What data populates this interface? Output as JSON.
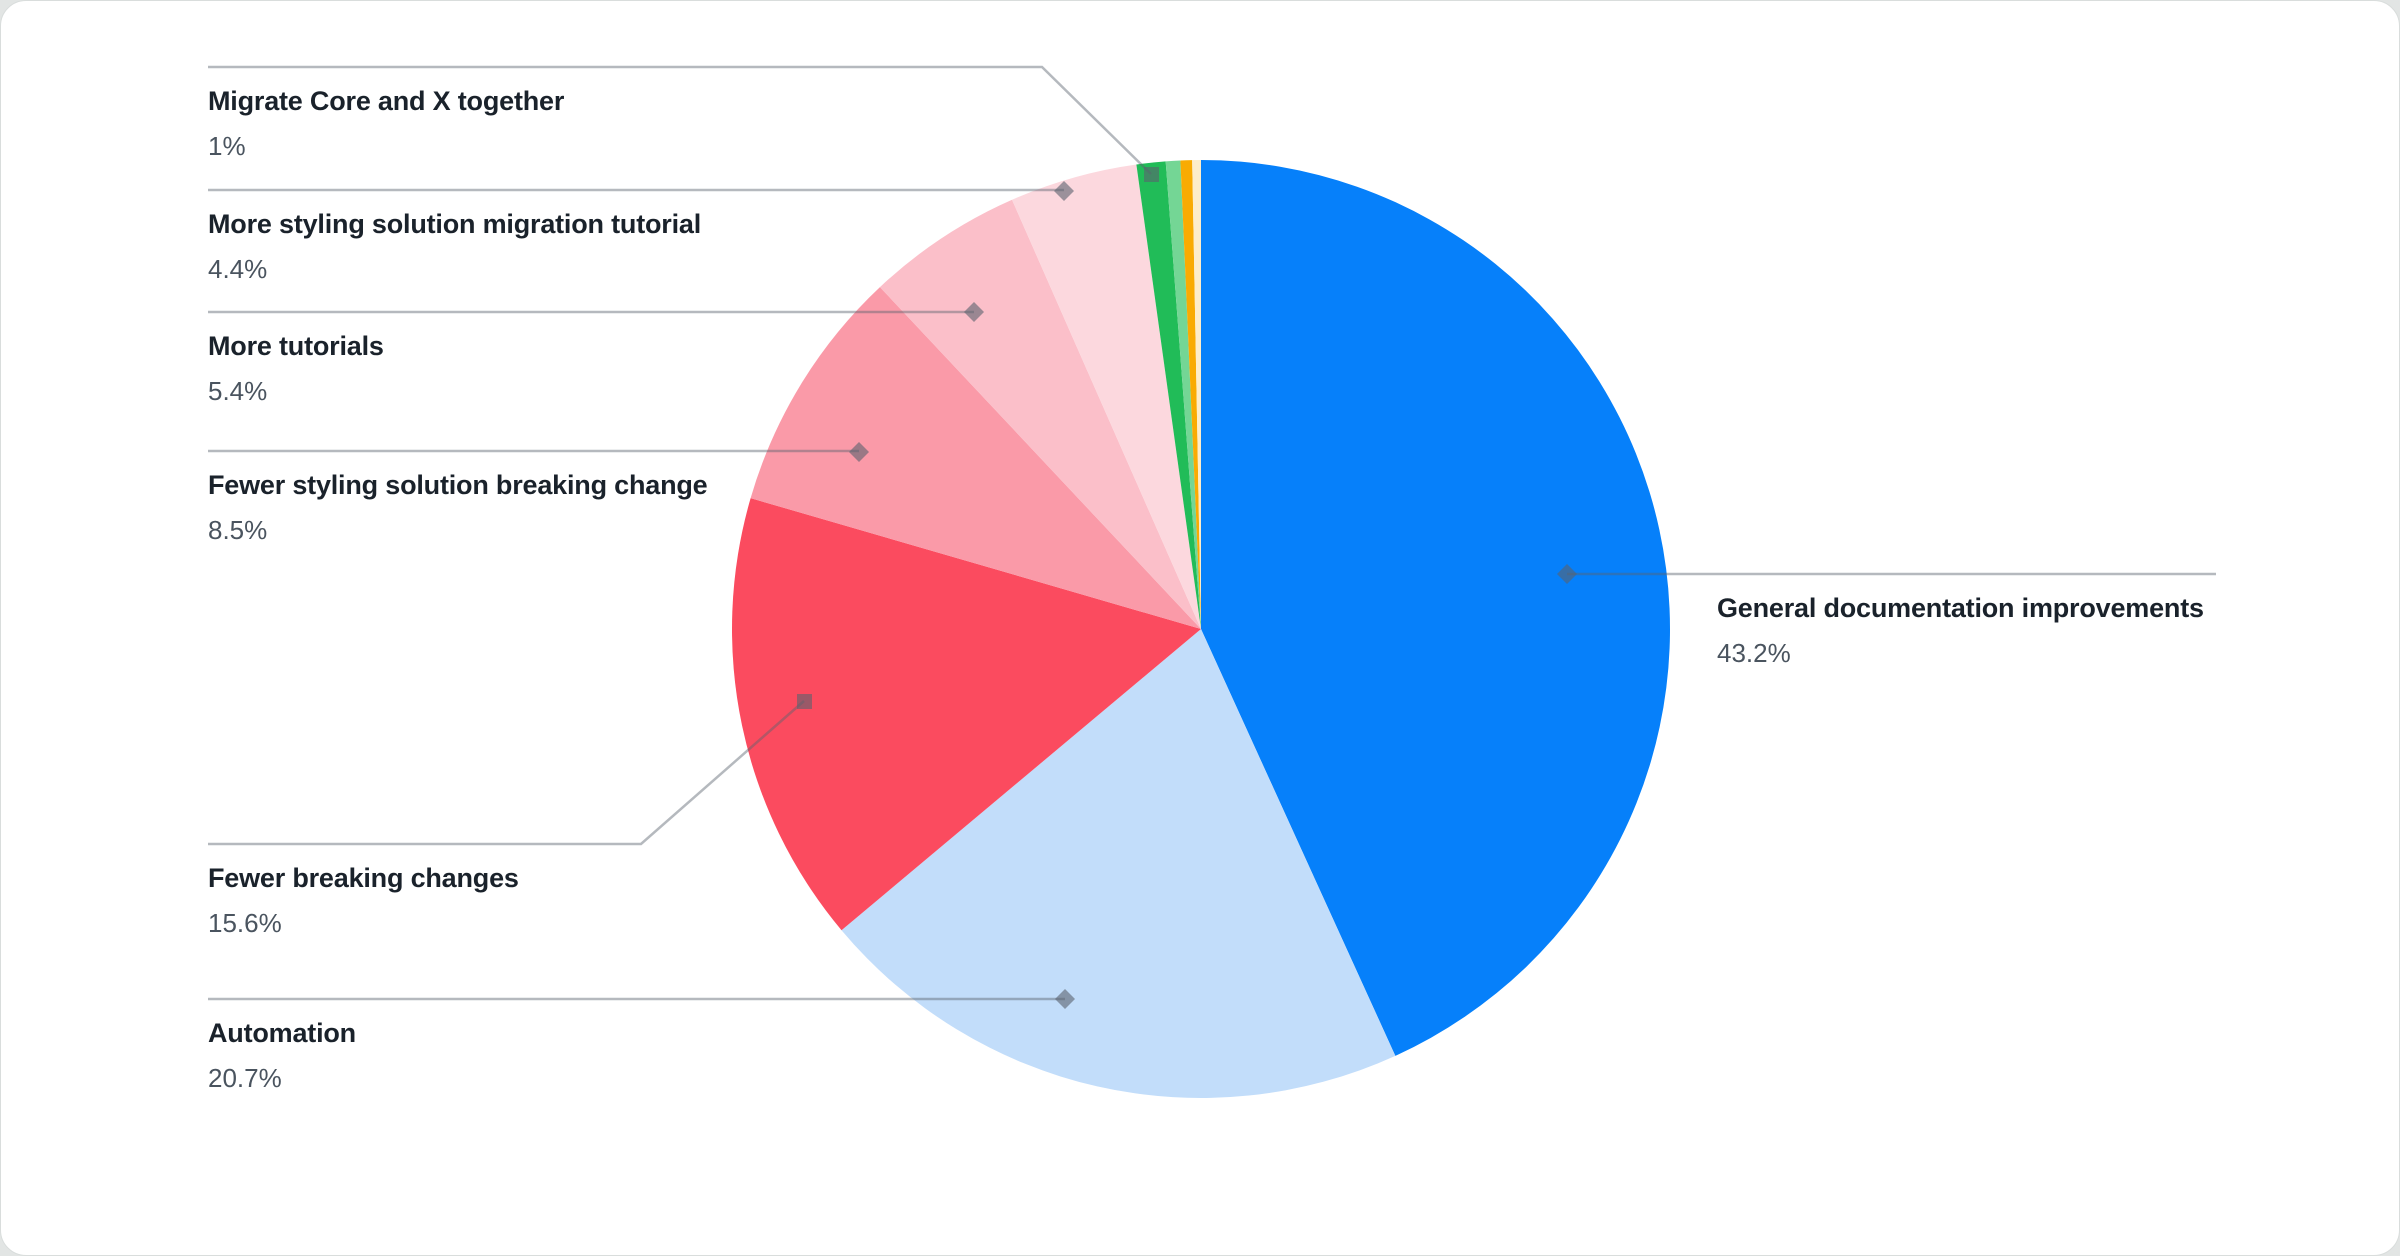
{
  "chart_data": {
    "type": "pie",
    "title": "",
    "unit": "%",
    "direction": "clockwise",
    "start_angle_deg": 0,
    "legend_position": "callout-labels",
    "slices": [
      {
        "label": "General documentation improvements",
        "value": 43.2,
        "pct_label": "43.2%",
        "color": "#0680fa"
      },
      {
        "label": "Automation",
        "value": 20.7,
        "pct_label": "20.7%",
        "color": "#c2ddfa"
      },
      {
        "label": "Fewer breaking changes",
        "value": 15.6,
        "pct_label": "15.6%",
        "color": "#fb4b5f"
      },
      {
        "label": "Fewer styling solution breaking change",
        "value": 8.5,
        "pct_label": "8.5%",
        "color": "#fa9aa8"
      },
      {
        "label": "More tutorials",
        "value": 5.4,
        "pct_label": "5.4%",
        "color": "#fbbfc9"
      },
      {
        "label": "More styling solution migration tutorial",
        "value": 4.4,
        "pct_label": "4.4%",
        "color": "#fcd8de"
      },
      {
        "label": "Migrate Core and X together",
        "value": 1,
        "pct_label": "1%",
        "color": "#21bc58"
      },
      {
        "label": "",
        "value": 0.5,
        "pct_label": "",
        "color": "#74d695"
      },
      {
        "label": "",
        "value": 0.4,
        "pct_label": "",
        "color": "#f9ab02"
      },
      {
        "label": "",
        "value": 0.3,
        "pct_label": "",
        "color": "#fdedca"
      }
    ]
  },
  "style": {
    "leader_line_color": "#5a636e",
    "marker_color": "#5a636e",
    "title_text_color": "#1a222b",
    "pct_text_color": "#4a545f",
    "card_background": "#ffffff",
    "page_background": "#e2e5e4"
  }
}
